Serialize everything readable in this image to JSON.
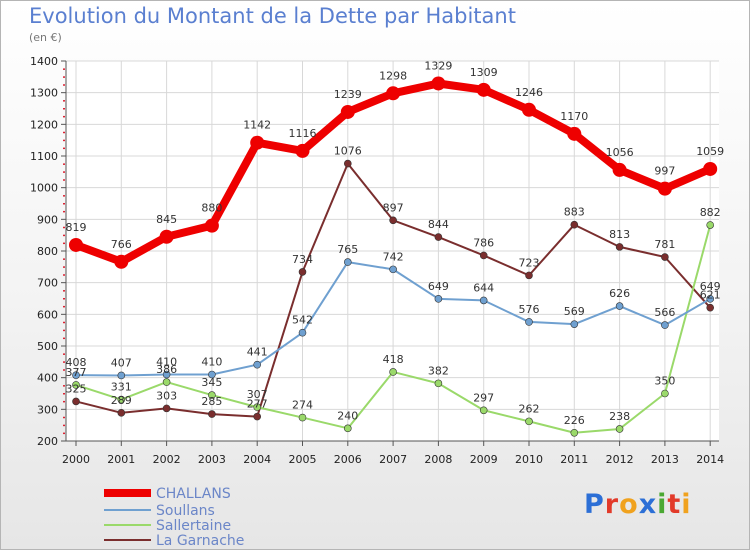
{
  "header": {
    "title": "Evolution du Montant de la Dette par Habitant",
    "unit": "(en €)"
  },
  "logo": {
    "text": "Proxiti",
    "colors": [
      "#2c6fd6",
      "#e23a2a",
      "#f0a21e",
      "#2c6fd6",
      "#4aa832",
      "#e23a2a",
      "#f0a21e"
    ]
  },
  "chart_data": {
    "type": "line",
    "title": "Evolution du Montant de la Dette par Habitant",
    "subtitle": "(en €)",
    "xlabel": "",
    "ylabel": "",
    "x": [
      "2000",
      "2001",
      "2002",
      "2003",
      "2004",
      "2005",
      "2006",
      "2007",
      "2008",
      "2009",
      "2010",
      "2011",
      "2012",
      "2013",
      "2014"
    ],
    "y_ticks": [
      200,
      300,
      400,
      500,
      600,
      700,
      800,
      900,
      1000,
      1100,
      1200,
      1300,
      1400
    ],
    "ylim": [
      200,
      1400
    ],
    "grid": true,
    "legend_position": "bottom-left",
    "series": [
      {
        "name": "CHALLANS",
        "color": "#ee0000",
        "label_color": "#6b86c8",
        "width": 8,
        "marker": 7,
        "values": [
          819,
          766,
          845,
          880,
          1142,
          1116,
          1239,
          1298,
          1329,
          1309,
          1246,
          1170,
          1056,
          997,
          1059
        ]
      },
      {
        "name": "Soullans",
        "color": "#6fa0d0",
        "label_color": "#6b86c8",
        "width": 2,
        "marker": 3.5,
        "values": [
          408,
          407,
          410,
          410,
          441,
          542,
          765,
          742,
          649,
          644,
          576,
          569,
          626,
          566,
          649
        ]
      },
      {
        "name": "Sallertaine",
        "color": "#9ad96a",
        "label_color": "#6b86c8",
        "width": 2,
        "marker": 3.5,
        "values": [
          377,
          331,
          386,
          345,
          307,
          274,
          240,
          418,
          382,
          297,
          262,
          226,
          238,
          350,
          882
        ]
      },
      {
        "name": "La Garnache",
        "color": "#7a2e2e",
        "label_color": "#6b86c8",
        "width": 2,
        "marker": 3.5,
        "values": [
          325,
          289,
          303,
          285,
          277,
          734,
          1076,
          897,
          844,
          786,
          723,
          883,
          813,
          781,
          621
        ]
      }
    ],
    "point_labels": [
      {
        "series": 0,
        "labels": [
          "819",
          "766",
          "845",
          "880",
          "1142",
          "1116",
          "1239",
          "1298",
          "1329",
          "1309",
          "1246",
          "1170",
          "1056",
          "997",
          "1059"
        ]
      },
      {
        "series": 1,
        "labels": [
          "408",
          "407",
          "410",
          "410",
          "441",
          "542",
          "765",
          "742",
          "649",
          "644",
          "576",
          "569",
          "626",
          "566",
          "649"
        ]
      },
      {
        "series": 2,
        "labels": [
          "377",
          "331",
          "386",
          "345",
          "307",
          "274",
          "240",
          "418",
          "382",
          "297",
          "262",
          "226",
          "238",
          "350",
          "882"
        ]
      },
      {
        "series": 3,
        "labels": [
          "325",
          "289",
          "303",
          "285",
          "277",
          "734",
          "1076",
          "897",
          "844",
          "786",
          "723",
          "883",
          "813",
          "781",
          "621"
        ]
      }
    ]
  }
}
